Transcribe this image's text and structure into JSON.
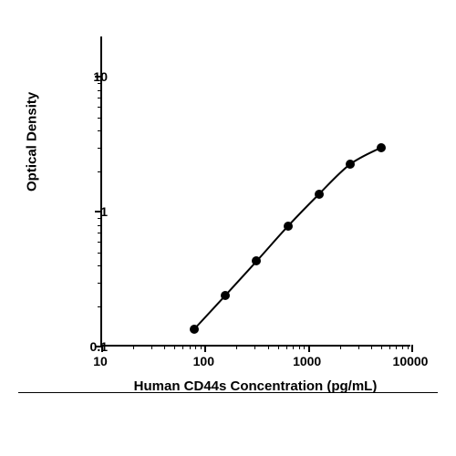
{
  "chart": {
    "type": "scatter-line-loglog",
    "xlabel": "Human CD44s Concentration (pg/mL)",
    "ylabel": "Optical Density",
    "label_fontsize": 15,
    "tick_fontsize": 14,
    "font_weight": "bold",
    "background_color": "#ffffff",
    "axis_color": "#000000",
    "line_color": "#000000",
    "line_width": 2,
    "marker_color": "#000000",
    "marker_size": 10,
    "marker_style": "circle",
    "x_scale": "log",
    "y_scale": "log",
    "xlim": [
      10,
      10000
    ],
    "ylim": [
      0.1,
      20
    ],
    "x_major_ticks": [
      10,
      100,
      1000,
      10000
    ],
    "x_tick_labels": [
      "10",
      "100",
      "1000",
      "10000"
    ],
    "y_major_ticks": [
      0.1,
      1,
      10
    ],
    "y_tick_labels": [
      "0.1",
      "1",
      "10"
    ],
    "data_points": [
      {
        "x": 78,
        "y": 0.135
      },
      {
        "x": 156,
        "y": 0.24
      },
      {
        "x": 312,
        "y": 0.43
      },
      {
        "x": 625,
        "y": 0.78
      },
      {
        "x": 1250,
        "y": 1.35
      },
      {
        "x": 2500,
        "y": 2.25
      },
      {
        "x": 5000,
        "y": 3.0
      }
    ]
  }
}
